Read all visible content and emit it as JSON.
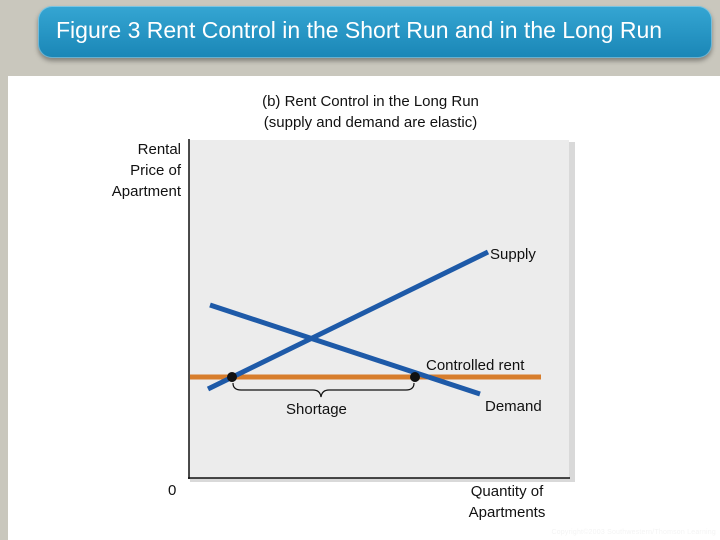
{
  "title": "Figure 3 Rent Control in the Short Run and in the Long Run",
  "panel_title_line1": "(b) Rent Control in the Long Run",
  "panel_title_line2": "(supply and demand are elastic)",
  "y_axis_label_lines": [
    "Rental",
    "Price of",
    "Apartment"
  ],
  "x_axis_label_lines": [
    "Quantity of",
    "Apartments"
  ],
  "origin_label": "0",
  "curve_labels": {
    "supply": "Supply",
    "demand": "Demand",
    "controlled_rent": "Controlled rent",
    "shortage": "Shortage"
  },
  "colors": {
    "supply_demand": "#1e5aa8",
    "controlled_rent": "#d77d2c",
    "title_banner": "#1f8fc0",
    "plot_background": "#ececec"
  },
  "footer": "Copyright©2003 Southwestern/Thomson Learning"
}
